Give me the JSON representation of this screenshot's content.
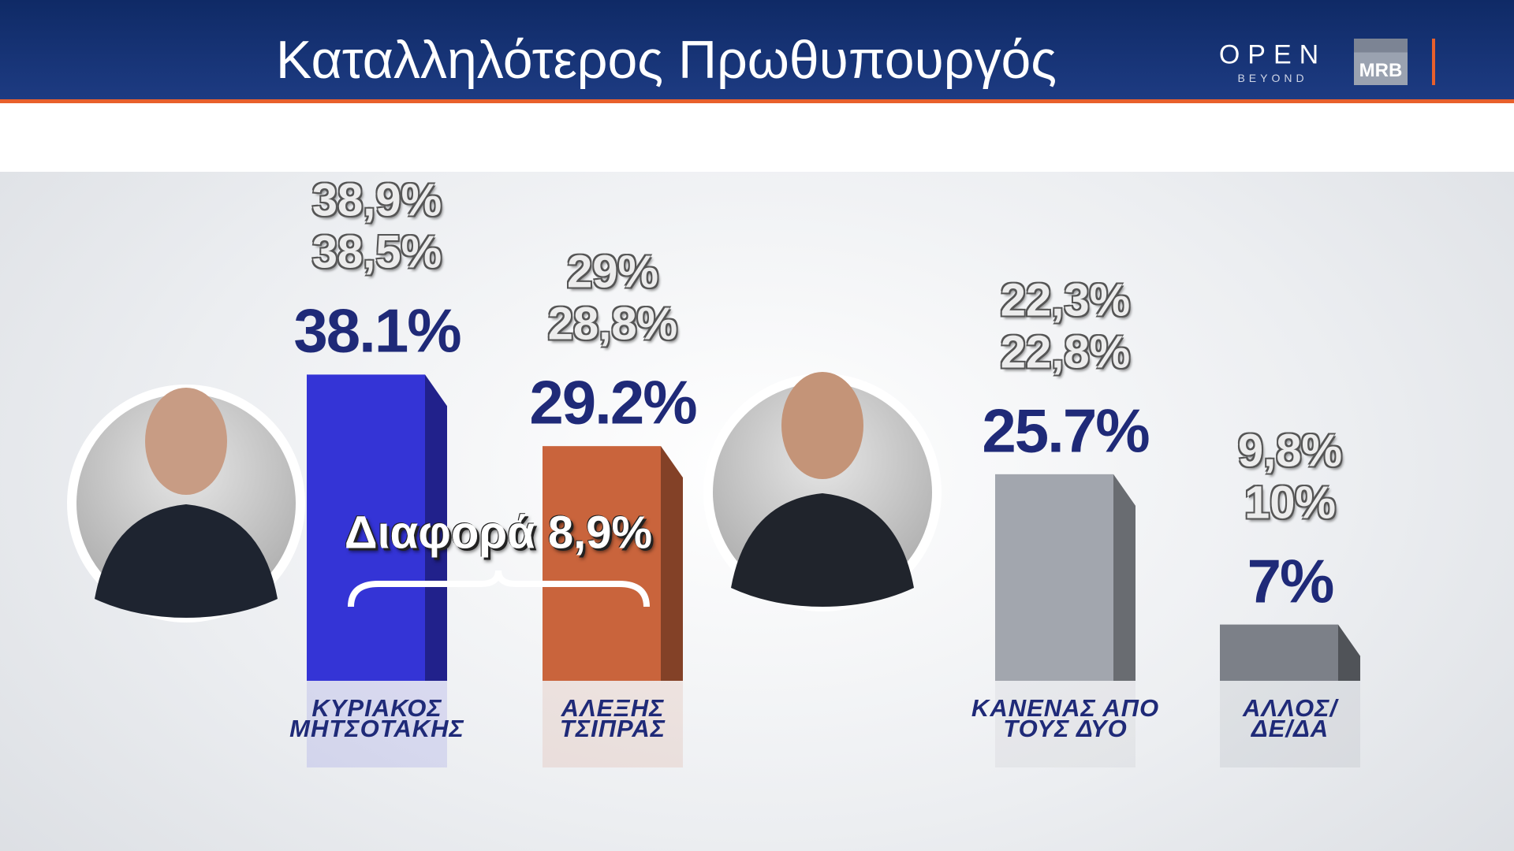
{
  "branding": {
    "open": "OPEN",
    "beyond": "BEYOND",
    "mrb": "MRB"
  },
  "chart_data": {
    "type": "bar",
    "title": "Καταλληλότερος Πρωθυπουργός",
    "categories": [
      "ΚΥΡΙΑΚΟΣ\nΜΗΤΣΟΤΑΚΗΣ",
      "ΑΛΕΞΗΣ\nΤΣΙΠΡΑΣ",
      "ΚΑΝΕΝΑΣ ΑΠΟ\nΤΟΥΣ ΔΥΟ",
      "ΑΛΛΟΣ/\nΔΕ/ΔΑ"
    ],
    "values": [
      38.1,
      29.2,
      25.7,
      7
    ],
    "value_labels": [
      "38.1%",
      "29.2%",
      "25.7%",
      "7%"
    ],
    "previous_values": [
      [
        38.9,
        38.5
      ],
      [
        29,
        28.8
      ],
      [
        22.3,
        22.8
      ],
      [
        9.8,
        10
      ]
    ],
    "previous_value_labels": [
      [
        "38,9%",
        "38,5%"
      ],
      [
        "29%",
        "28,8%"
      ],
      [
        "22,3%",
        "22,8%"
      ],
      [
        "9,8%",
        "10%"
      ]
    ],
    "colors": [
      "#3434d6",
      "#c9643c",
      "#a2a6ae",
      "#7c8088"
    ],
    "annotation": "Διαφορά 8,9%"
  }
}
